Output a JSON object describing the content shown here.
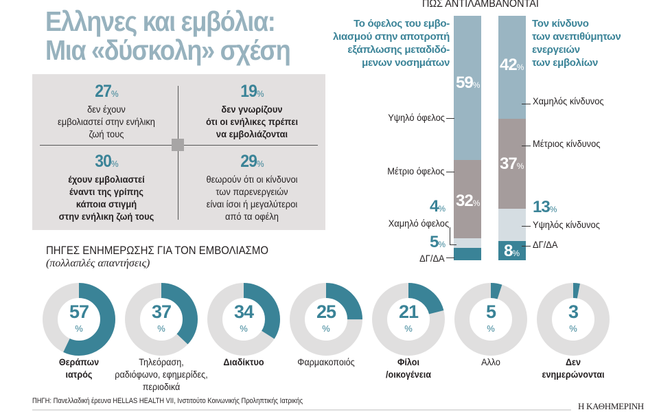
{
  "title": {
    "line1": "Ελληνες και εμβόλια:",
    "line2": "Μια «δύσκολη» σχέση"
  },
  "stats": [
    {
      "value": "27",
      "unit": "%",
      "text": [
        "δεν έχουν",
        "εμβολιαστεί στην ενήλικη",
        "ζωή τους"
      ],
      "bold": false
    },
    {
      "value": "19",
      "unit": "%",
      "text": [
        "δεν γνωρίζουν",
        "ότι οι ενήλικες πρέπει",
        "να εμβολιάζονται"
      ],
      "bold": true
    },
    {
      "value": "30",
      "unit": "%",
      "text": [
        "έχουν εμβολιαστεί",
        "έναντι της γρίπης",
        "κάποια στιγμή",
        "στην ενήλικη ζωή τους"
      ],
      "bold": true
    },
    {
      "value": "29",
      "unit": "%",
      "text": [
        "θεωρούν ότι οι κίνδυνοι",
        "των παρενεργειών",
        "είναι ίσοι ή μεγαλύτεροι",
        "από τα οφέλη"
      ],
      "bold": false
    }
  ],
  "colors": {
    "title": "#97b2be",
    "high_light": "#9ab5c2",
    "medium_gray": "#a59c9c",
    "pale": "#d5dde2",
    "teal": "#3a8397",
    "donut_rest": "#e0dfdf",
    "box": "#e3e0e0"
  },
  "chart_data": [
    {
      "type": "bar",
      "stacked": true,
      "title": "ΠΩΣ ΑΝΤΙΛΑΜΒΑΝΟΝΤΑΙ",
      "bars": [
        {
          "caption": [
            "Το όφελος του εμβο-",
            "λιασμού στην αποτροπή",
            "εξάπλωσης μεταδιδό-",
            "μενων νοσημάτων"
          ],
          "segments": [
            {
              "name": "Υψηλό όφελος",
              "value": 59
            },
            {
              "name": "Μέτριο όφελος",
              "value": 32
            },
            {
              "name": "Χαμηλό όφελος",
              "value": 4
            },
            {
              "name": "ΔΓ/ΔΑ",
              "value": 5
            }
          ]
        },
        {
          "caption": [
            "Τον κίνδυνο",
            "των ανεπιθύμητων",
            "ενεργειών",
            "των εμβολίων"
          ],
          "segments": [
            {
              "name": "Χαμηλός κίνδυνος",
              "value": 42
            },
            {
              "name": "Μέτριος κίνδυνος",
              "value": 37
            },
            {
              "name": "Υψηλός κίνδυνος",
              "value": 13
            },
            {
              "name": "ΔΓ/ΔΑ",
              "value": 8
            }
          ]
        }
      ],
      "unit": "%"
    },
    {
      "type": "pie",
      "donut": true,
      "title": "ΠΗΓΕΣ ΕΝΗΜΕΡΩΣΗΣ ΓΙΑ ΤΟΝ ΕΜΒΟΛΙΑΣΜΟ",
      "subtitle": "(πολλαπλές απαντήσεις)",
      "unit": "%",
      "items": [
        {
          "label": [
            "Θεράπων",
            "ιατρός"
          ],
          "value": 57,
          "bold": true
        },
        {
          "label": [
            "Τηλεόραση,",
            "ραδιόφωνο, εφημερίδες,",
            "περιοδικά"
          ],
          "value": 37,
          "bold": false
        },
        {
          "label": [
            "Διαδίκτυο"
          ],
          "value": 34,
          "bold": true
        },
        {
          "label": [
            "Φαρμακοποιός"
          ],
          "value": 25,
          "bold": false
        },
        {
          "label": [
            "Φίλοι",
            "/οικογένεια"
          ],
          "value": 21,
          "bold": true
        },
        {
          "label": [
            "Αλλο"
          ],
          "value": 5,
          "bold": false
        },
        {
          "label": [
            "Δεν",
            "ενημερώνονται"
          ],
          "value": 3,
          "bold": true
        }
      ]
    }
  ],
  "source": "ΠΗΓΗ: Πανελλαδική έρευνα HELLAS HEALTH VII, Ινστιτούτο Κοινωνικής Προληπτικής Ιατρικής",
  "brand": "Η ΚΑΘΗΜΕΡΙΝΗ"
}
